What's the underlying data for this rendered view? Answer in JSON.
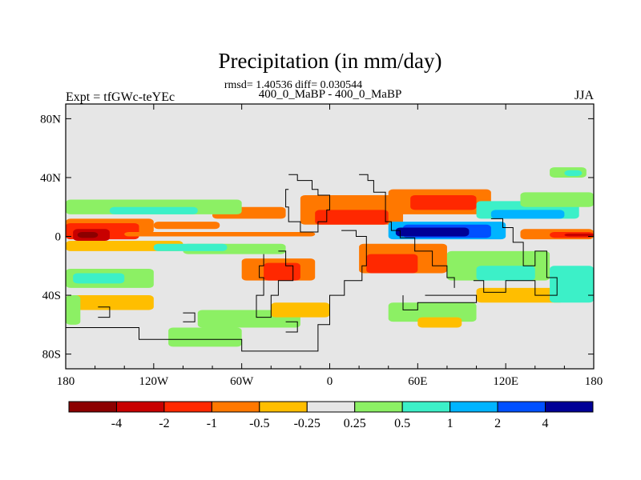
{
  "chart_data": {
    "type": "heatmap",
    "title": "Precipitation (in mm/day)",
    "stats_line": "rmsd= 1.40536 diff= 0.030544",
    "subtitle": "400_0_MaBP - 400_0_MaBP",
    "left_label": "Expt = tfGWc-teYEc",
    "right_label": "JJA",
    "x_ticks": [
      {
        "lon": -180,
        "label": "180"
      },
      {
        "lon": -120,
        "label": "120W"
      },
      {
        "lon": -60,
        "label": "60W"
      },
      {
        "lon": 0,
        "label": "0"
      },
      {
        "lon": 60,
        "label": "60E"
      },
      {
        "lon": 120,
        "label": "120E"
      },
      {
        "lon": 180,
        "label": "180"
      }
    ],
    "y_ticks": [
      {
        "lat": 80,
        "label": "80N"
      },
      {
        "lat": 40,
        "label": "40N"
      },
      {
        "lat": 0,
        "label": "0"
      },
      {
        "lat": -40,
        "label": "40S"
      },
      {
        "lat": -80,
        "label": "80S"
      }
    ],
    "xlim": [
      -180,
      180
    ],
    "ylim": [
      -90,
      90
    ],
    "colorbar": {
      "colors": [
        "#8c0000",
        "#c80000",
        "#ff2800",
        "#ff7800",
        "#ffbe00",
        "#e6e6e6",
        "#8cf064",
        "#3cf0c8",
        "#00b4ff",
        "#0050ff",
        "#000096"
      ],
      "labels": [
        "-4",
        "-2",
        "-1",
        "-0.5",
        "-0.25",
        "0.25",
        "0.5",
        "1",
        "2",
        "4"
      ]
    },
    "background_color": "#e6e6e6",
    "regions": [
      {
        "c": 3,
        "lon": [
          -180,
          -120
        ],
        "lat": [
          12,
          2
        ]
      },
      {
        "c": 3,
        "lon": [
          -120,
          -75
        ],
        "lat": [
          10,
          5
        ]
      },
      {
        "c": 2,
        "lon": [
          -180,
          -130
        ],
        "lat": [
          9,
          -2
        ]
      },
      {
        "c": 1,
        "lon": [
          -175,
          -150
        ],
        "lat": [
          5,
          -3
        ]
      },
      {
        "c": 0,
        "lon": [
          -172,
          -158
        ],
        "lat": [
          3,
          -1
        ]
      },
      {
        "c": 4,
        "lon": [
          -180,
          -100
        ],
        "lat": [
          -3,
          -10
        ]
      },
      {
        "c": 3,
        "lon": [
          -20,
          50
        ],
        "lat": [
          28,
          8
        ]
      },
      {
        "c": 2,
        "lon": [
          -10,
          40
        ],
        "lat": [
          18,
          8
        ]
      },
      {
        "c": 3,
        "lon": [
          40,
          110
        ],
        "lat": [
          32,
          15
        ]
      },
      {
        "c": 2,
        "lon": [
          55,
          100
        ],
        "lat": [
          28,
          18
        ]
      },
      {
        "c": 3,
        "lon": [
          -80,
          -30
        ],
        "lat": [
          20,
          12
        ]
      },
      {
        "c": 3,
        "lon": [
          -140,
          -10
        ],
        "lat": [
          3,
          0
        ]
      },
      {
        "c": 6,
        "lon": [
          -180,
          -60
        ],
        "lat": [
          25,
          15
        ]
      },
      {
        "c": 7,
        "lon": [
          -150,
          -90
        ],
        "lat": [
          20,
          15
        ]
      },
      {
        "c": 6,
        "lon": [
          -100,
          -30
        ],
        "lat": [
          -5,
          -12
        ]
      },
      {
        "c": 7,
        "lon": [
          -120,
          -70
        ],
        "lat": [
          -5,
          -10
        ]
      },
      {
        "c": 8,
        "lon": [
          40,
          120
        ],
        "lat": [
          10,
          -2
        ]
      },
      {
        "c": 9,
        "lon": [
          50,
          110
        ],
        "lat": [
          8,
          -1
        ]
      },
      {
        "c": 10,
        "lon": [
          45,
          95
        ],
        "lat": [
          6,
          0
        ]
      },
      {
        "c": 7,
        "lon": [
          100,
          170
        ],
        "lat": [
          24,
          12
        ]
      },
      {
        "c": 8,
        "lon": [
          110,
          160
        ],
        "lat": [
          18,
          12
        ]
      },
      {
        "c": 6,
        "lon": [
          130,
          180
        ],
        "lat": [
          30,
          20
        ]
      },
      {
        "c": 3,
        "lon": [
          130,
          180
        ],
        "lat": [
          5,
          -2
        ]
      },
      {
        "c": 2,
        "lon": [
          150,
          180
        ],
        "lat": [
          3,
          -1
        ]
      },
      {
        "c": 1,
        "lon": [
          160,
          180
        ],
        "lat": [
          2,
          0
        ]
      },
      {
        "c": 3,
        "lon": [
          20,
          80
        ],
        "lat": [
          -5,
          -25
        ]
      },
      {
        "c": 2,
        "lon": [
          25,
          60
        ],
        "lat": [
          -12,
          -25
        ]
      },
      {
        "c": 3,
        "lon": [
          -60,
          -10
        ],
        "lat": [
          -15,
          -30
        ]
      },
      {
        "c": 2,
        "lon": [
          -45,
          -20
        ],
        "lat": [
          -18,
          -30
        ]
      },
      {
        "c": 6,
        "lon": [
          80,
          150
        ],
        "lat": [
          -10,
          -30
        ]
      },
      {
        "c": 7,
        "lon": [
          100,
          140
        ],
        "lat": [
          -20,
          -30
        ]
      },
      {
        "c": 4,
        "lon": [
          100,
          160
        ],
        "lat": [
          -35,
          -45
        ]
      },
      {
        "c": 6,
        "lon": [
          -180,
          -120
        ],
        "lat": [
          -22,
          -35
        ]
      },
      {
        "c": 7,
        "lon": [
          -175,
          -140
        ],
        "lat": [
          -25,
          -32
        ]
      },
      {
        "c": 4,
        "lon": [
          -180,
          -120
        ],
        "lat": [
          -40,
          -50
        ]
      },
      {
        "c": 6,
        "lon": [
          -90,
          -20
        ],
        "lat": [
          -50,
          -62
        ]
      },
      {
        "c": 4,
        "lon": [
          -40,
          0
        ],
        "lat": [
          -45,
          -55
        ]
      },
      {
        "c": 6,
        "lon": [
          40,
          100
        ],
        "lat": [
          -45,
          -58
        ]
      },
      {
        "c": 4,
        "lon": [
          60,
          90
        ],
        "lat": [
          -55,
          -62
        ]
      },
      {
        "c": 7,
        "lon": [
          150,
          180
        ],
        "lat": [
          -20,
          -45
        ]
      },
      {
        "c": 6,
        "lon": [
          -180,
          -170
        ],
        "lat": [
          -40,
          -60
        ]
      },
      {
        "c": 6,
        "lon": [
          -110,
          -60
        ],
        "lat": [
          -62,
          -75
        ]
      },
      {
        "c": 6,
        "lon": [
          150,
          175
        ],
        "lat": [
          47,
          40
        ]
      },
      {
        "c": 7,
        "lon": [
          160,
          172
        ],
        "lat": [
          45,
          41
        ]
      }
    ],
    "outlines": [
      [
        [
          -28,
          42
        ],
        [
          -22,
          42
        ],
        [
          -22,
          38
        ],
        [
          -12,
          38
        ],
        [
          -12,
          32
        ],
        [
          -8,
          32
        ],
        [
          -8,
          28
        ],
        [
          0,
          28
        ],
        [
          0,
          18
        ],
        [
          -2,
          18
        ],
        [
          -2,
          10
        ],
        [
          -8,
          10
        ],
        [
          -8,
          3
        ],
        [
          -20,
          3
        ],
        [
          -20,
          10
        ],
        [
          -28,
          10
        ],
        [
          -28,
          20
        ],
        [
          -30,
          20
        ],
        [
          -30,
          32
        ],
        [
          -28,
          32
        ]
      ],
      [
        [
          -35,
          -10
        ],
        [
          -30,
          -10
        ],
        [
          -30,
          -20
        ],
        [
          -25,
          -20
        ],
        [
          -25,
          -30
        ],
        [
          -35,
          -30
        ],
        [
          -35,
          -40
        ],
        [
          -40,
          -40
        ],
        [
          -40,
          -55
        ],
        [
          -50,
          -55
        ],
        [
          -50,
          -40
        ],
        [
          -45,
          -40
        ],
        [
          -45,
          -28
        ],
        [
          -48,
          -28
        ],
        [
          -48,
          -20
        ],
        [
          -45,
          -20
        ],
        [
          -45,
          -12
        ]
      ],
      [
        [
          8,
          4
        ],
        [
          18,
          4
        ],
        [
          18,
          0
        ],
        [
          25,
          0
        ],
        [
          25,
          -20
        ],
        [
          22,
          -20
        ],
        [
          22,
          -30
        ],
        [
          10,
          -30
        ],
        [
          10,
          -40
        ],
        [
          0,
          -40
        ],
        [
          0,
          -60
        ],
        [
          -8,
          -60
        ],
        [
          -8,
          -78
        ],
        [
          -60,
          -78
        ],
        [
          -60,
          -70
        ],
        [
          -130,
          -70
        ],
        [
          -130,
          -62
        ],
        [
          -180,
          -62
        ]
      ],
      [
        [
          20,
          42
        ],
        [
          26,
          42
        ],
        [
          26,
          38
        ],
        [
          30,
          38
        ],
        [
          30,
          30
        ],
        [
          38,
          30
        ],
        [
          38,
          10
        ],
        [
          42,
          10
        ],
        [
          42,
          4
        ],
        [
          48,
          4
        ],
        [
          48,
          -1
        ],
        [
          58,
          -1
        ],
        [
          58,
          -10
        ],
        [
          70,
          -10
        ],
        [
          70,
          -20
        ],
        [
          80,
          -20
        ],
        [
          80,
          -28
        ],
        [
          85,
          -28
        ],
        [
          85,
          -35
        ]
      ],
      [
        [
          65,
          -40
        ],
        [
          100,
          -40
        ],
        [
          100,
          -45
        ],
        [
          60,
          -45
        ],
        [
          60,
          -50
        ],
        [
          50,
          -50
        ],
        [
          50,
          -40
        ]
      ],
      [
        [
          110,
          12
        ],
        [
          118,
          12
        ],
        [
          118,
          6
        ],
        [
          125,
          6
        ],
        [
          125,
          -4
        ],
        [
          132,
          -4
        ],
        [
          132,
          -20
        ],
        [
          140,
          -20
        ],
        [
          140,
          -10
        ],
        [
          148,
          -10
        ],
        [
          148,
          -28
        ],
        [
          155,
          -28
        ],
        [
          155,
          -40
        ],
        [
          140,
          -40
        ],
        [
          140,
          -30
        ],
        [
          120,
          -30
        ],
        [
          120,
          -38
        ],
        [
          105,
          -38
        ],
        [
          105,
          -30
        ],
        [
          98,
          -30
        ]
      ],
      [
        [
          -158,
          -48
        ],
        [
          -150,
          -48
        ],
        [
          -150,
          -55
        ],
        [
          -158,
          -55
        ]
      ],
      [
        [
          -100,
          -52
        ],
        [
          -92,
          -52
        ],
        [
          -92,
          -58
        ],
        [
          -100,
          -58
        ]
      ],
      [
        [
          -30,
          -58
        ],
        [
          -22,
          -58
        ],
        [
          -22,
          -65
        ],
        [
          -30,
          -65
        ]
      ]
    ]
  }
}
